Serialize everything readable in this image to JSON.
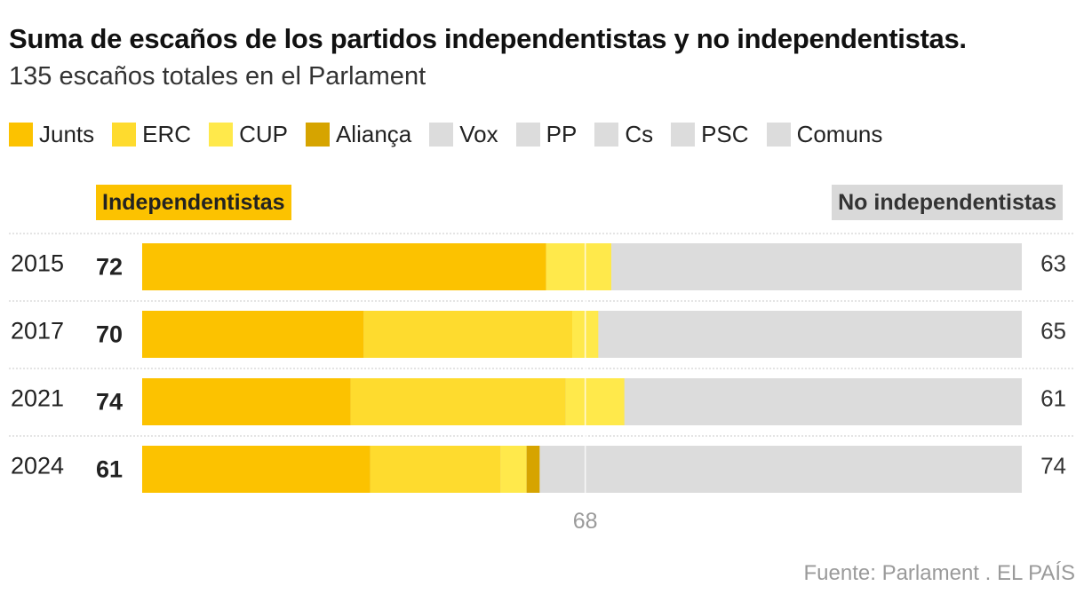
{
  "title": "Suma de escaños de los partidos independentistas y no independentistas.",
  "subtitle": "135 escaños totales en el Parlament",
  "legend": [
    {
      "label": "Junts",
      "color": "#fcc200"
    },
    {
      "label": "ERC",
      "color": "#fedb2e"
    },
    {
      "label": "CUP",
      "color": "#ffe94b"
    },
    {
      "label": "Aliança",
      "color": "#d6a400"
    },
    {
      "label": "Vox",
      "color": "#dcdcdc"
    },
    {
      "label": "PP",
      "color": "#dcdcdc"
    },
    {
      "label": "Cs",
      "color": "#dcdcdc"
    },
    {
      "label": "PSC",
      "color": "#dcdcdc"
    },
    {
      "label": "Comuns",
      "color": "#dcdcdc"
    }
  ],
  "groups": {
    "independentistas": "Independentistas",
    "no_independentistas": "No independentistas"
  },
  "source": "Fuente: Parlament . EL PAÍS",
  "chart_data": {
    "type": "bar",
    "orientation": "horizontal",
    "stacked": true,
    "total_seats": 135,
    "majority_line": {
      "value": 68,
      "label": "68"
    },
    "categories": [
      "2015",
      "2017",
      "2021",
      "2024"
    ],
    "series": [
      {
        "name": "Junts",
        "color": "#fcc200",
        "values": [
          62,
          34,
          32,
          35
        ]
      },
      {
        "name": "ERC",
        "color": "#fedb2e",
        "values": [
          0,
          32,
          33,
          20
        ]
      },
      {
        "name": "CUP",
        "color": "#ffe94b",
        "values": [
          10,
          4,
          9,
          4
        ]
      },
      {
        "name": "Aliança",
        "color": "#d6a400",
        "values": [
          0,
          0,
          0,
          2
        ]
      }
    ],
    "independentistas_totals": [
      "72",
      "70",
      "74",
      "61"
    ],
    "no_independentistas_totals": [
      "63",
      "65",
      "61",
      "74"
    ],
    "no_independentistas_color": "#dcdcdc"
  }
}
